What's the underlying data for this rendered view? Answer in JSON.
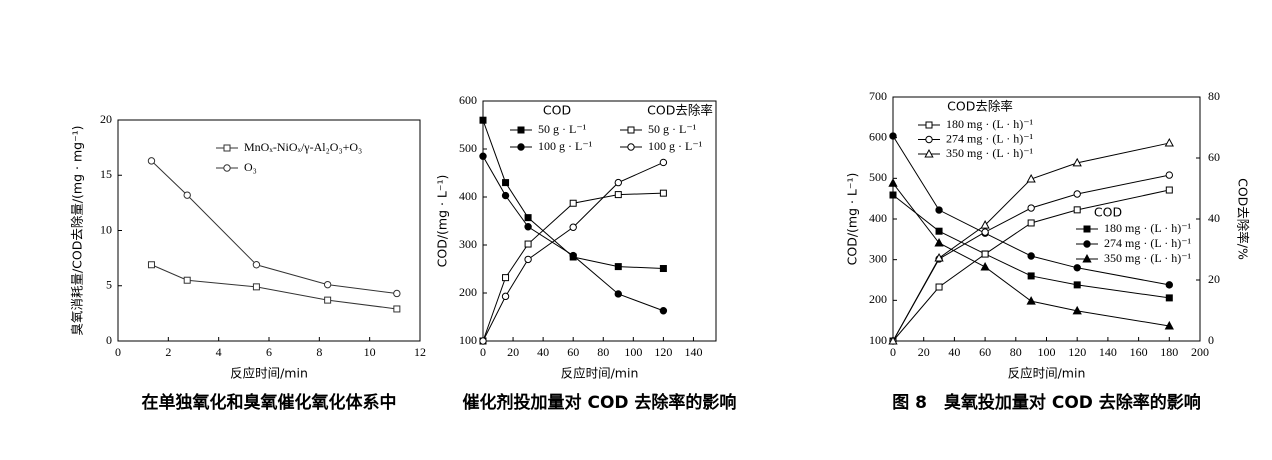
{
  "chart_data": [
    {
      "type": "line",
      "ylabel": "臭氧消耗量/COD去除量/(mg · mg⁻¹)",
      "xlabel": "反应时间/min",
      "caption": "在单独氧化和臭氧催化氧化体系中",
      "xlim": [
        0,
        12
      ],
      "xticks": [
        0,
        2,
        4,
        6,
        8,
        10,
        12
      ],
      "ylim": [
        0,
        20
      ],
      "yticks": [
        0,
        5,
        10,
        15,
        20
      ],
      "x": [
        1.33,
        2.75,
        5.5,
        8.33,
        11.08
      ],
      "series": [
        {
          "name": "MnOₓ-NiOₓ/γ-Al₂O₃+O₃",
          "color": "#333333",
          "marker": "square",
          "filled": false,
          "values": [
            6.9,
            5.5,
            4.9,
            3.7,
            2.9
          ]
        },
        {
          "name": "O₃",
          "color": "#333333",
          "marker": "circle",
          "filled": false,
          "values": [
            16.3,
            13.2,
            6.9,
            5.1,
            4.3
          ]
        }
      ]
    },
    {
      "type": "line",
      "ylabel": "COD/(mg · L⁻¹)",
      "xlabel": "反应时间/min",
      "caption": "催化剂投加量对 COD 去除率的影响",
      "xlim": [
        0,
        155
      ],
      "xticks": [
        0,
        20,
        40,
        60,
        80,
        100,
        120,
        140
      ],
      "ylim": [
        100,
        600
      ],
      "yticks": [
        100,
        200,
        300,
        400,
        500,
        600
      ],
      "x": [
        0,
        15,
        30,
        60,
        90,
        120
      ],
      "series_groups": [
        {
          "name": "COD",
          "series": [
            {
              "name": "50 g · L⁻¹",
              "color": "#000000",
              "marker": "square",
              "filled": true,
              "values": [
                560,
                430,
                357,
                275,
                255,
                251
              ]
            },
            {
              "name": "100 g · L⁻¹",
              "color": "#000000",
              "marker": "circle",
              "filled": true,
              "values": [
                485,
                403,
                338,
                278,
                198,
                163
              ]
            }
          ]
        },
        {
          "name": "COD去除率",
          "series": [
            {
              "name": "50 g · L⁻¹",
              "color": "#000000",
              "marker": "square",
              "filled": false,
              "values": [
                100,
                232,
                302,
                387,
                405,
                408
              ]
            },
            {
              "name": "100 g · L⁻¹",
              "color": "#000000",
              "marker": "circle",
              "filled": false,
              "values": [
                100,
                193,
                270,
                337,
                430,
                472
              ]
            }
          ]
        }
      ]
    },
    {
      "type": "line",
      "ylabel": "COD/(mg · L⁻¹)",
      "y2label": "COD去除率/%",
      "xlabel": "反应时间/min",
      "caption": "图 8　臭氧投加量对 COD 去除率的影响",
      "xlim": [
        0,
        200
      ],
      "xticks": [
        0,
        20,
        40,
        60,
        80,
        100,
        120,
        140,
        160,
        180,
        200
      ],
      "ylim": [
        100,
        700
      ],
      "yticks": [
        100,
        200,
        300,
        400,
        500,
        600,
        700
      ],
      "y2lim": [
        0,
        80
      ],
      "y2ticks": [
        0,
        20,
        40,
        60,
        80
      ],
      "x": [
        0,
        30,
        60,
        90,
        120,
        180
      ],
      "series_groups": [
        {
          "name": "COD",
          "series": [
            {
              "name": "180 mg · (L · h)⁻¹",
              "color": "#000000",
              "marker": "square",
              "filled": true,
              "values": [
                459,
                370,
                314,
                260,
                238,
                206
              ]
            },
            {
              "name": "274 mg · (L · h)⁻¹",
              "color": "#000000",
              "marker": "circle",
              "filled": true,
              "values": [
                604,
                422,
                365,
                309,
                280,
                238
              ]
            },
            {
              "name": "350 mg · (L · h)⁻¹",
              "color": "#000000",
              "marker": "triangle",
              "filled": true,
              "values": [
                488,
                341,
                282,
                198,
                174,
                137
              ]
            }
          ]
        },
        {
          "name": "COD去除率",
          "series": [
            {
              "name": "180 mg · (L · h)⁻¹",
              "color": "#000000",
              "marker": "square",
              "filled": false,
              "axis": "y2",
              "values": [
                0,
                17.7,
                28.5,
                38.7,
                43,
                49.5
              ]
            },
            {
              "name": "274 mg · (L · h)⁻¹",
              "color": "#000000",
              "marker": "circle",
              "filled": false,
              "axis": "y2",
              "values": [
                0,
                26.9,
                35.7,
                43.6,
                48.2,
                54.4
              ]
            },
            {
              "name": "350 mg · (L · h)⁻¹",
              "color": "#000000",
              "marker": "triangle",
              "filled": false,
              "axis": "y2",
              "values": [
                0,
                27.2,
                38,
                53.1,
                58.4,
                64.9
              ]
            }
          ]
        }
      ]
    }
  ]
}
